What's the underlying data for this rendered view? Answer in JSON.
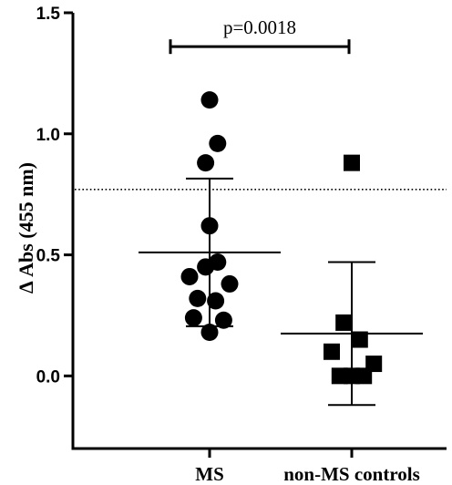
{
  "chart_data": {
    "type": "scatter",
    "title": "",
    "xlabel": "",
    "ylabel": "Δ Abs (455 nm)",
    "ylim": [
      -0.3,
      1.5
    ],
    "yticks": [
      0.0,
      0.5,
      1.0,
      1.5
    ],
    "ytick_labels": [
      "0.0",
      "0.5",
      "1.0",
      "1.5"
    ],
    "categories": [
      "MS",
      "non-MS controls"
    ],
    "grid": false,
    "series": [
      {
        "category": "MS",
        "marker": "circle",
        "color": "#000000",
        "values": [
          1.14,
          0.96,
          0.88,
          0.62,
          0.47,
          0.45,
          0.41,
          0.38,
          0.32,
          0.31,
          0.24,
          0.23,
          0.18
        ],
        "x_jitter": [
          0.0,
          0.2,
          -0.1,
          0.0,
          0.2,
          -0.1,
          -0.5,
          0.5,
          -0.3,
          0.15,
          -0.4,
          0.35,
          0.0
        ],
        "mean": 0.51,
        "sd_upper": 0.815,
        "sd_lower": 0.205
      },
      {
        "category": "non-MS controls",
        "marker": "square",
        "color": "#000000",
        "values": [
          0.88,
          0.22,
          0.15,
          0.1,
          0.05,
          0.0,
          0.0,
          0.0
        ],
        "x_jitter": [
          0.0,
          -0.2,
          0.2,
          -0.5,
          0.55,
          -0.3,
          0.0,
          0.3
        ],
        "mean": 0.175,
        "sd_upper": 0.47,
        "sd_lower": -0.12
      }
    ],
    "threshold_line": {
      "y": 0.77,
      "style": "dotted"
    },
    "annotation": {
      "text": "p=0.0018",
      "between": [
        "MS",
        "non-MS controls"
      ],
      "y": 1.36
    }
  }
}
